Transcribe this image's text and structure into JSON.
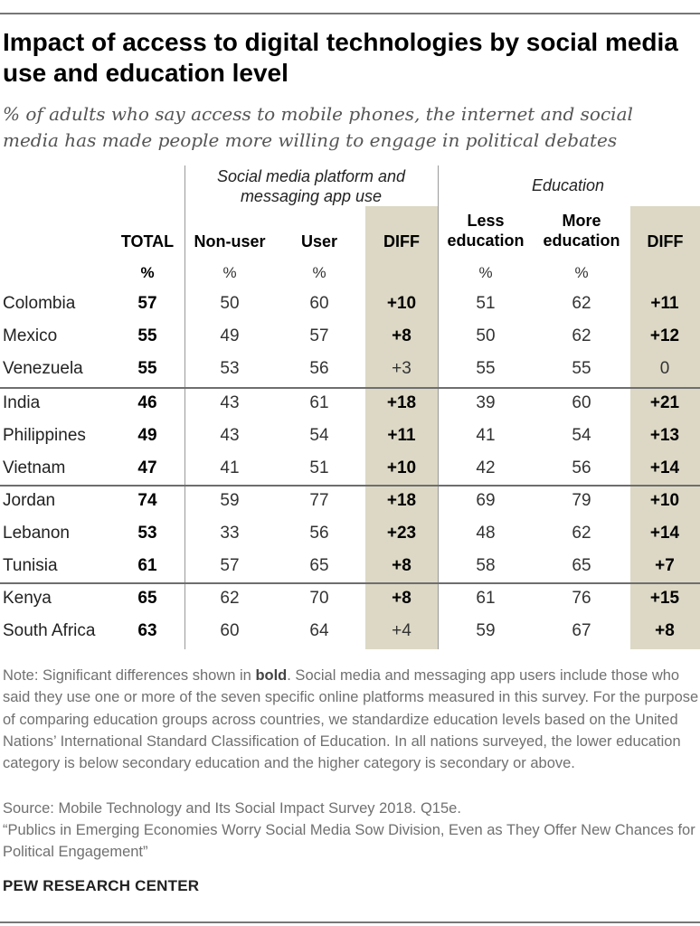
{
  "title": "Impact of access to digital technologies by social media use and education level",
  "subtitle": "% of adults who say access to mobile phones, the internet and social media has made people more willing to engage in political debates",
  "groups": {
    "social_media": "Social media platform and messaging app use",
    "education": "Education"
  },
  "columns": {
    "total": "TOTAL",
    "non_user": "Non-user",
    "user": "User",
    "diff_sm": "DIFF",
    "less_edu": "Less education",
    "more_edu": "More education",
    "diff_edu": "DIFF"
  },
  "pct_label": "%",
  "rows": [
    {
      "country": "Colombia",
      "total": "57",
      "non_user": "50",
      "user": "60",
      "diff_sm": "+10",
      "diff_sm_sig": true,
      "less_edu": "51",
      "more_edu": "62",
      "diff_edu": "+11",
      "diff_edu_sig": true
    },
    {
      "country": "Mexico",
      "total": "55",
      "non_user": "49",
      "user": "57",
      "diff_sm": "+8",
      "diff_sm_sig": true,
      "less_edu": "50",
      "more_edu": "62",
      "diff_edu": "+12",
      "diff_edu_sig": true
    },
    {
      "country": "Venezuela",
      "total": "55",
      "non_user": "53",
      "user": "56",
      "diff_sm": "+3",
      "diff_sm_sig": false,
      "less_edu": "55",
      "more_edu": "55",
      "diff_edu": "0",
      "diff_edu_sig": false
    },
    {
      "country": "India",
      "total": "46",
      "non_user": "43",
      "user": "61",
      "diff_sm": "+18",
      "diff_sm_sig": true,
      "less_edu": "39",
      "more_edu": "60",
      "diff_edu": "+21",
      "diff_edu_sig": true
    },
    {
      "country": "Philippines",
      "total": "49",
      "non_user": "43",
      "user": "54",
      "diff_sm": "+11",
      "diff_sm_sig": true,
      "less_edu": "41",
      "more_edu": "54",
      "diff_edu": "+13",
      "diff_edu_sig": true
    },
    {
      "country": "Vietnam",
      "total": "47",
      "non_user": "41",
      "user": "51",
      "diff_sm": "+10",
      "diff_sm_sig": true,
      "less_edu": "42",
      "more_edu": "56",
      "diff_edu": "+14",
      "diff_edu_sig": true
    },
    {
      "country": "Jordan",
      "total": "74",
      "non_user": "59",
      "user": "77",
      "diff_sm": "+18",
      "diff_sm_sig": true,
      "less_edu": "69",
      "more_edu": "79",
      "diff_edu": "+10",
      "diff_edu_sig": true
    },
    {
      "country": "Lebanon",
      "total": "53",
      "non_user": "33",
      "user": "56",
      "diff_sm": "+23",
      "diff_sm_sig": true,
      "less_edu": "48",
      "more_edu": "62",
      "diff_edu": "+14",
      "diff_edu_sig": true
    },
    {
      "country": "Tunisia",
      "total": "61",
      "non_user": "57",
      "user": "65",
      "diff_sm": "+8",
      "diff_sm_sig": true,
      "less_edu": "58",
      "more_edu": "65",
      "diff_edu": "+7",
      "diff_edu_sig": true
    },
    {
      "country": "Kenya",
      "total": "65",
      "non_user": "62",
      "user": "70",
      "diff_sm": "+8",
      "diff_sm_sig": true,
      "less_edu": "61",
      "more_edu": "76",
      "diff_edu": "+15",
      "diff_edu_sig": true
    },
    {
      "country": "South Africa",
      "total": "63",
      "non_user": "60",
      "user": "64",
      "diff_sm": "+4",
      "diff_sm_sig": false,
      "less_edu": "59",
      "more_edu": "67",
      "diff_edu": "+8",
      "diff_edu_sig": true
    }
  ],
  "note_prefix": "Note: Significant differences shown in ",
  "note_bold": "bold",
  "note_rest": ". Social media and messaging app users include those who said they use one or more of the seven specific online platforms measured in this survey. For the purpose of comparing education groups across countries, we standardize education levels based on the United Nations’ International Standard Classification of Education. In all nations surveyed, the lower education category is below secondary education and the higher category is secondary or above.",
  "source": "Source: Mobile Technology and Its Social Impact Survey 2018. Q15e.",
  "citation": "“Publics in Emerging Economies Worry Social Media Sow Division, Even as They Offer New Chances for Political Engagement”",
  "org": "PEW RESEARCH CENTER",
  "colors": {
    "shade": "#dcd8c5",
    "text": "#1a1a1a",
    "note_text": "#707070"
  },
  "chart_data": {
    "type": "table",
    "title": "Impact of access to digital technologies by social media use and education level",
    "subtitle": "% of adults who say access to mobile phones, the internet and social media has made people more willing to engage in political debates",
    "columns": [
      "TOTAL",
      "Non-user",
      "User",
      "DIFF",
      "Less education",
      "More education",
      "DIFF"
    ],
    "categories": [
      "Colombia",
      "Mexico",
      "Venezuela",
      "India",
      "Philippines",
      "Vietnam",
      "Jordan",
      "Lebanon",
      "Tunisia",
      "Kenya",
      "South Africa"
    ],
    "series": [
      {
        "name": "TOTAL",
        "values": [
          57,
          55,
          55,
          46,
          49,
          47,
          74,
          53,
          61,
          65,
          63
        ]
      },
      {
        "name": "Non-user",
        "values": [
          50,
          49,
          53,
          43,
          43,
          41,
          59,
          33,
          57,
          62,
          60
        ]
      },
      {
        "name": "User",
        "values": [
          60,
          57,
          56,
          61,
          54,
          51,
          77,
          56,
          65,
          70,
          64
        ]
      },
      {
        "name": "DIFF",
        "values": [
          10,
          8,
          3,
          18,
          11,
          10,
          18,
          23,
          8,
          8,
          4
        ]
      },
      {
        "name": "Less education",
        "values": [
          51,
          50,
          55,
          39,
          41,
          42,
          69,
          48,
          58,
          61,
          59
        ]
      },
      {
        "name": "More education",
        "values": [
          62,
          62,
          55,
          60,
          54,
          56,
          79,
          62,
          65,
          76,
          67
        ]
      },
      {
        "name": "DIFF",
        "values": [
          11,
          12,
          0,
          21,
          13,
          14,
          10,
          14,
          7,
          15,
          8
        ]
      }
    ]
  }
}
